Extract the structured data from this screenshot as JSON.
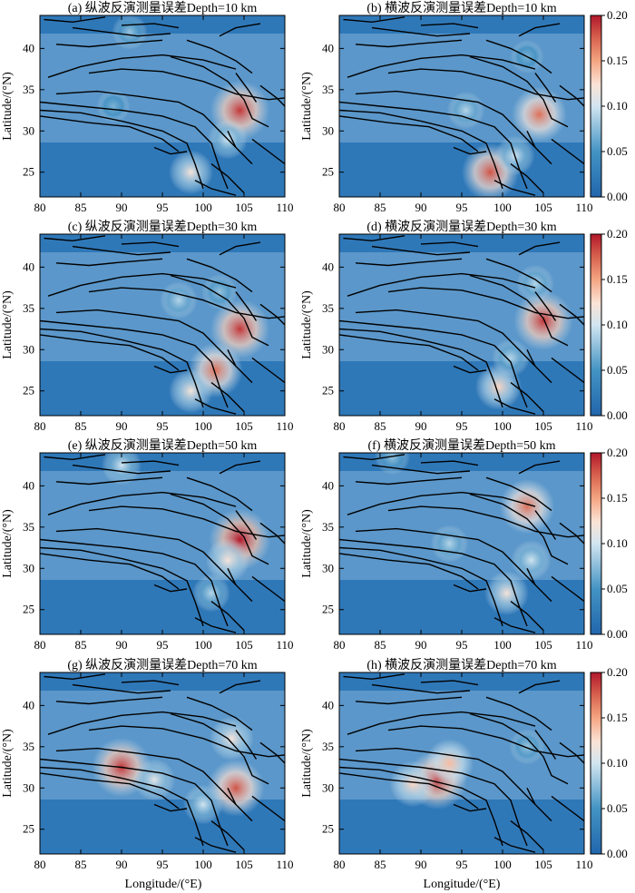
{
  "figure": {
    "xlabel": "Longitude/(°E)",
    "ylabel": "Latitude/(°N)",
    "x_ticks": [
      "80",
      "85",
      "90",
      "95",
      "100",
      "105",
      "110"
    ],
    "y_ticks": [
      "25",
      "30",
      "35",
      "40"
    ],
    "colorbar_ticks": [
      "0.00",
      "0.05",
      "0.10",
      "0.15",
      "0.20"
    ]
  },
  "chart_data": [
    {
      "type": "heatmap",
      "title": "(a) 纵波反演测量误差Depth=10 km",
      "xlim": [
        80,
        110
      ],
      "ylim": [
        22,
        44
      ],
      "vmin": 0,
      "vmax": 0.2,
      "hotspots": [
        {
          "lon": 104.5,
          "lat": 32.5,
          "value": 0.19
        },
        {
          "lon": 98.5,
          "lat": 25,
          "value": 0.12
        },
        {
          "lon": 91,
          "lat": 42,
          "value": 0.08
        },
        {
          "lon": 89,
          "lat": 33,
          "value": 0.07
        },
        {
          "lon": 103,
          "lat": 29,
          "value": 0.1
        }
      ]
    },
    {
      "type": "heatmap",
      "title": "(b) 横波反演测量误差Depth=10 km",
      "xlim": [
        80,
        110
      ],
      "ylim": [
        22,
        44
      ],
      "vmin": 0,
      "vmax": 0.2,
      "hotspots": [
        {
          "lon": 104.5,
          "lat": 32,
          "value": 0.17
        },
        {
          "lon": 98.5,
          "lat": 25,
          "value": 0.18
        },
        {
          "lon": 95.5,
          "lat": 32.5,
          "value": 0.09
        },
        {
          "lon": 101.5,
          "lat": 27,
          "value": 0.1
        },
        {
          "lon": 103,
          "lat": 39,
          "value": 0.07
        }
      ]
    },
    {
      "type": "heatmap",
      "title": "(c) 纵波反演测量误差Depth=30 km",
      "xlim": [
        80,
        110
      ],
      "ylim": [
        22,
        44
      ],
      "vmin": 0,
      "vmax": 0.2,
      "hotspots": [
        {
          "lon": 104.5,
          "lat": 32.5,
          "value": 0.19
        },
        {
          "lon": 101.5,
          "lat": 27.5,
          "value": 0.17
        },
        {
          "lon": 98.5,
          "lat": 25,
          "value": 0.12
        },
        {
          "lon": 97,
          "lat": 36,
          "value": 0.09
        },
        {
          "lon": 102,
          "lat": 37,
          "value": 0.08
        }
      ]
    },
    {
      "type": "heatmap",
      "title": "(d) 横波反演测量误差Depth=30 km",
      "xlim": [
        80,
        110
      ],
      "ylim": [
        22,
        44
      ],
      "vmin": 0,
      "vmax": 0.2,
      "hotspots": [
        {
          "lon": 105,
          "lat": 33.5,
          "value": 0.19
        },
        {
          "lon": 99.5,
          "lat": 25.5,
          "value": 0.13
        },
        {
          "lon": 104,
          "lat": 38,
          "value": 0.09
        },
        {
          "lon": 101,
          "lat": 29,
          "value": 0.09
        }
      ]
    },
    {
      "type": "heatmap",
      "title": "(e) 纵波反演测量误差Depth=50 km",
      "xlim": [
        80,
        110
      ],
      "ylim": [
        22,
        44
      ],
      "vmin": 0,
      "vmax": 0.2,
      "hotspots": [
        {
          "lon": 104.5,
          "lat": 33.5,
          "value": 0.2
        },
        {
          "lon": 90,
          "lat": 42.5,
          "value": 0.1
        },
        {
          "lon": 101,
          "lat": 27,
          "value": 0.09
        },
        {
          "lon": 103,
          "lat": 31,
          "value": 0.12
        }
      ]
    },
    {
      "type": "heatmap",
      "title": "(f) 横波反演测量误差Depth=50 km",
      "xlim": [
        80,
        110
      ],
      "ylim": [
        22,
        44
      ],
      "vmin": 0,
      "vmax": 0.2,
      "hotspots": [
        {
          "lon": 103,
          "lat": 37.5,
          "value": 0.17
        },
        {
          "lon": 100.5,
          "lat": 27,
          "value": 0.12
        },
        {
          "lon": 103.5,
          "lat": 31,
          "value": 0.1
        },
        {
          "lon": 93.5,
          "lat": 33,
          "value": 0.09
        },
        {
          "lon": 86.5,
          "lat": 43.5,
          "value": 0.08
        }
      ]
    },
    {
      "type": "heatmap",
      "title": "(g) 纵波反演测量误差Depth=70 km",
      "xlim": [
        80,
        110
      ],
      "ylim": [
        22,
        44
      ],
      "vmin": 0,
      "vmax": 0.2,
      "hotspots": [
        {
          "lon": 90,
          "lat": 32.5,
          "value": 0.19
        },
        {
          "lon": 104,
          "lat": 30,
          "value": 0.18
        },
        {
          "lon": 94,
          "lat": 31,
          "value": 0.11
        },
        {
          "lon": 103.5,
          "lat": 36,
          "value": 0.12
        },
        {
          "lon": 100,
          "lat": 28,
          "value": 0.1
        }
      ]
    },
    {
      "type": "heatmap",
      "title": "(h) 横波反演测量误差Depth=70 km",
      "xlim": [
        80,
        110
      ],
      "ylim": [
        22,
        44
      ],
      "vmin": 0,
      "vmax": 0.2,
      "hotspots": [
        {
          "lon": 92,
          "lat": 31,
          "value": 0.19
        },
        {
          "lon": 89,
          "lat": 30.5,
          "value": 0.13
        },
        {
          "lon": 93.5,
          "lat": 33,
          "value": 0.14
        },
        {
          "lon": 103,
          "lat": 35,
          "value": 0.08
        }
      ]
    }
  ]
}
